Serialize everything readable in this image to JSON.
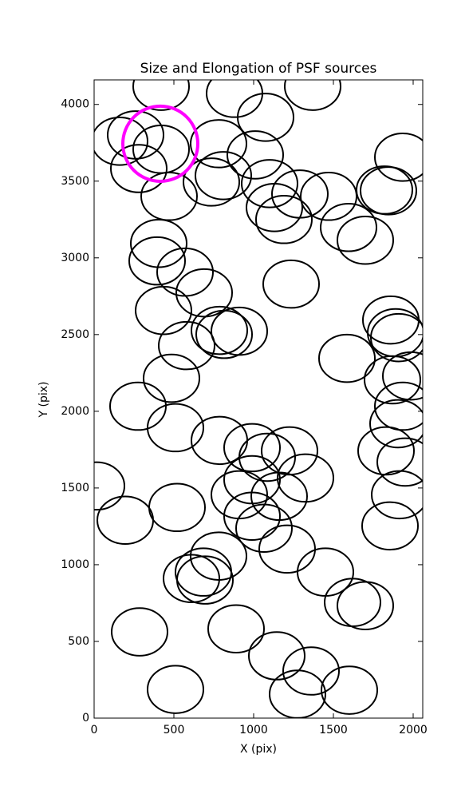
{
  "chart_data": {
    "type": "ellipse-scatter",
    "title": "Size and Elongation of PSF sources",
    "x_label": "X (pix)",
    "y_label": "Y (pix)",
    "xlim": [
      0,
      2060
    ],
    "ylim": [
      0,
      4160
    ],
    "xticks": [
      0,
      500,
      1000,
      1500,
      2000
    ],
    "yticks": [
      0,
      500,
      1000,
      1500,
      2000,
      2500,
      3000,
      3500,
      4000
    ],
    "grid": false,
    "series": [
      {
        "color": "#000000",
        "ellipse_width": 350,
        "ellipse_height": 310,
        "x": [
          420,
          880,
          1370,
          1075,
          160,
          260,
          420,
          780,
          1010,
          1935,
          280,
          470,
          735,
          810,
          1100,
          1130,
          1190,
          1290,
          1470,
          1820,
          1845,
          1595,
          1700,
          405,
          395,
          570,
          690,
          1235,
          435,
          785,
          815,
          910,
          580,
          1860,
          1890,
          1910,
          1585,
          485,
          1870,
          1985,
          275,
          510,
          1935,
          1905,
          785,
          990,
          1085,
          1225,
          1830,
          1950,
          15,
          990,
          1325,
          910,
          1160,
          520,
          1915,
          195,
          990,
          1065,
          1855,
          1210,
          780,
          685,
          610,
          695,
          1450,
          1620,
          1700,
          285,
          890,
          1145,
          1360,
          1275,
          1600,
          510
        ],
        "values": [
          4118,
          4072,
          4118,
          3916,
          3760,
          3801,
          3708,
          3744,
          3671,
          3656,
          3582,
          3401,
          3494,
          3536,
          3484,
          3328,
          3250,
          3416,
          3401,
          3442,
          3437,
          3198,
          3115,
          3094,
          2980,
          2907,
          2772,
          2829,
          2657,
          2527,
          2501,
          2522,
          2428,
          2595,
          2512,
          2480,
          2345,
          2215,
          2205,
          2230,
          2033,
          1893,
          2033,
          1919,
          1810,
          1763,
          1700,
          1742,
          1742,
          1669,
          1513,
          1554,
          1565,
          1456,
          1446,
          1373,
          1456,
          1290,
          1316,
          1238,
          1253,
          1102,
          1056,
          952,
          910,
          900,
          952,
          754,
          733,
          562,
          582,
          406,
          307,
          156,
          182,
          187
        ]
      },
      {
        "color": "#ff00ff",
        "ellipse_width": 470,
        "ellipse_height": 490,
        "x": [
          415
        ],
        "values": [
          3744
        ]
      }
    ]
  }
}
